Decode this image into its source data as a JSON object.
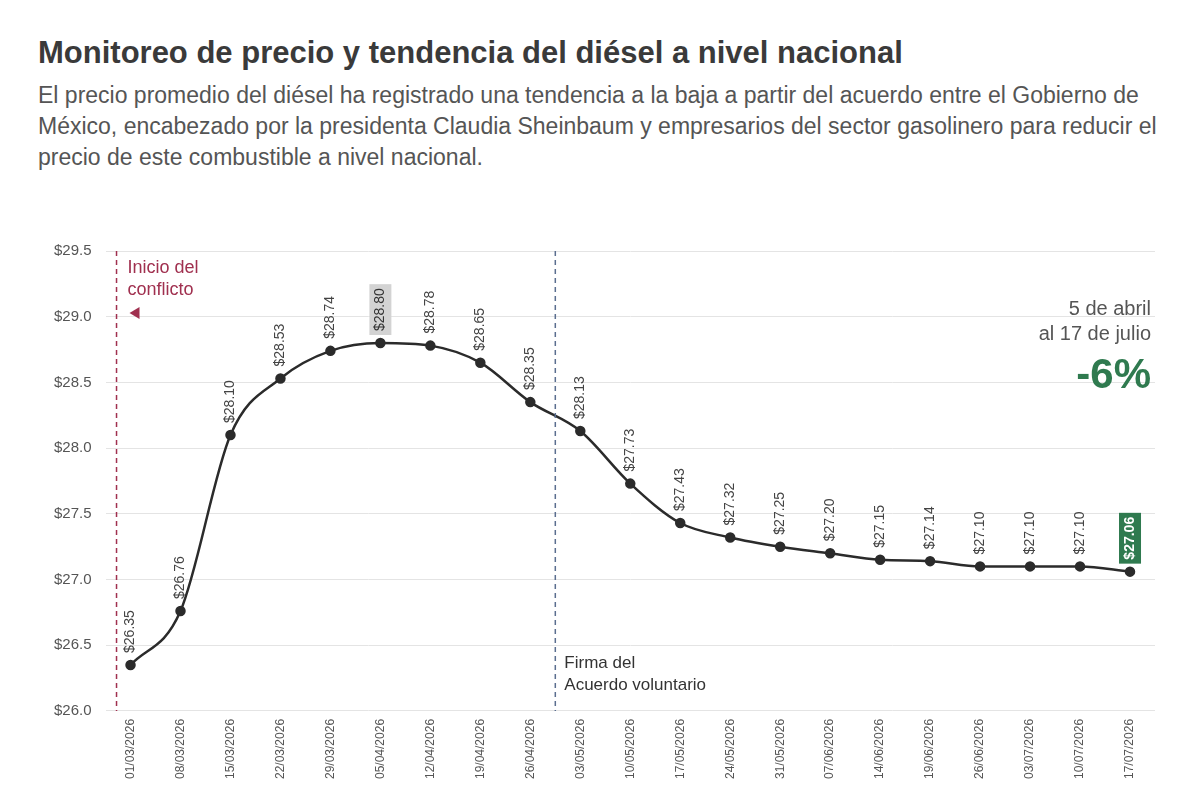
{
  "chart_data": {
    "type": "line",
    "title": "Monitoreo de precio y tendencia del diésel a nivel nacional",
    "subtitle": "El precio promedio del diésel ha registrado una tendencia a la baja a partir del acuerdo entre el Gobierno de México, encabezado por la presidenta Claudia Sheinbaum y empresarios del sector gasolinero para reducir el precio de este combustible a nivel nacional.",
    "categories": [
      "01/03/2026",
      "08/03/2026",
      "15/03/2026",
      "22/03/2026",
      "29/03/2026",
      "05/04/2026",
      "12/04/2026",
      "19/04/2026",
      "26/04/2026",
      "03/05/2026",
      "10/05/2026",
      "17/05/2026",
      "24/05/2026",
      "31/05/2026",
      "07/06/2026",
      "14/06/2026",
      "19/06/2026",
      "26/06/2026",
      "03/07/2026",
      "10/07/2026",
      "17/07/2026"
    ],
    "values": [
      26.35,
      26.76,
      28.1,
      28.53,
      28.74,
      28.8,
      28.78,
      28.65,
      28.35,
      28.13,
      27.73,
      27.43,
      27.32,
      27.25,
      27.2,
      27.15,
      27.14,
      27.1,
      27.1,
      27.1,
      27.06
    ],
    "value_labels": [
      "$26.35",
      "$26.76",
      "$28.10",
      "$28.53",
      "$28.74",
      "$28.80",
      "$28.78",
      "$28.65",
      "$28.35",
      "$28.13",
      "$27.73",
      "$27.43",
      "$27.32",
      "$27.25",
      "$27.20",
      "$27.15",
      "$27.14",
      "$27.10",
      "$27.10",
      "$27.10",
      "$27.06"
    ],
    "color": "#2b2b2b",
    "ylim": [
      26,
      29.5
    ],
    "yticks": [
      {
        "value": 26,
        "label": "$26.0"
      },
      {
        "value": 26.5,
        "label": "$26.5"
      },
      {
        "value": 27,
        "label": "$27.0"
      },
      {
        "value": 27.5,
        "label": "$27.5"
      },
      {
        "value": 28,
        "label": "$28.0"
      },
      {
        "value": 28.5,
        "label": "$28.5"
      },
      {
        "value": 29,
        "label": "$29.0"
      },
      {
        "value": 29.5,
        "label": "$29.5"
      }
    ],
    "grid": true,
    "data_labels": true,
    "annotations": [
      {
        "text": [
          "Inicio del",
          "conflicto"
        ],
        "before": "01/03/2026"
      },
      {
        "text": [
          "Firma del",
          "Acuerdo voluntario"
        ],
        "before": "03/05/2026"
      }
    ],
    "highlight": {
      "text": [
        "5 de abril",
        "al 17 de julio"
      ],
      "change": "-6%"
    }
  }
}
